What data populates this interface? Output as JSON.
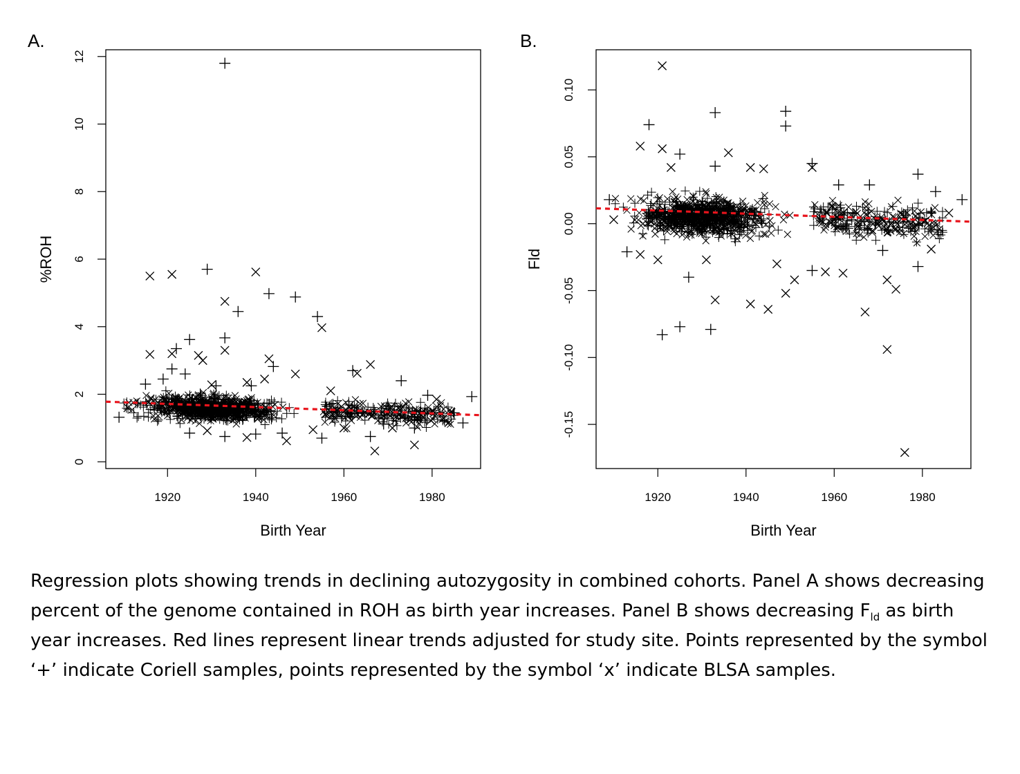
{
  "panels": {
    "a_label": "A.",
    "b_label": "B."
  },
  "colors": {
    "points": "#000000",
    "trend": "#e8141c"
  },
  "caption": {
    "part1": "Regression plots showing trends in declining autozygosity in combined cohorts.  Panel A shows decreasing percent of the genome contained in ROH as birth year increases.  Panel B shows decreasing F",
    "subscript": "ld",
    "part2": " as birth year increases.   Red lines represent linear trends adjusted for study site.  Points represented by the symbol ‘+’ indicate Coriell  samples, points represented by the symbol ‘x’ indicate BLSA samples."
  },
  "chart_data": [
    {
      "id": "A",
      "type": "scatter",
      "xlabel": "Birth Year",
      "ylabel": "%ROH",
      "xlim": [
        1906,
        1991
      ],
      "ylim": [
        -0.2,
        12.2
      ],
      "xticks": [
        1920,
        1940,
        1960,
        1980
      ],
      "yticks": [
        0,
        2,
        4,
        6,
        8,
        10,
        12
      ],
      "trend": {
        "x": [
          1906,
          1991
        ],
        "y": [
          1.78,
          1.38
        ],
        "style": "dashed"
      },
      "series": [
        {
          "marker": "+",
          "points": [
            [
              1933,
              11.8
            ],
            [
              1929,
              5.7
            ],
            [
              1943,
              4.98
            ],
            [
              1949,
              4.88
            ],
            [
              1936,
              4.45
            ],
            [
              1954,
              4.3
            ],
            [
              1925,
              3.62
            ],
            [
              1933,
              3.67
            ],
            [
              1922,
              3.35
            ],
            [
              1944,
              2.82
            ],
            [
              1921,
              2.75
            ],
            [
              1915,
              2.3
            ],
            [
              1919,
              2.45
            ],
            [
              1973,
              2.4
            ],
            [
              1989,
              1.93
            ],
            [
              1909,
              1.32
            ],
            [
              1924,
              2.6
            ],
            [
              1962,
              2.7
            ],
            [
              1979,
              1.97
            ],
            [
              1987,
              1.15
            ],
            [
              1985,
              1.45
            ],
            [
              1955,
              0.7
            ],
            [
              1966,
              0.75
            ],
            [
              1933,
              0.75
            ],
            [
              1940,
              0.82
            ],
            [
              1946,
              0.85
            ],
            [
              1925,
              0.85
            ],
            [
              1969,
              1.12
            ],
            [
              1976,
              1.0
            ],
            [
              1931,
              2.25
            ],
            [
              1939,
              2.25
            ]
          ]
        },
        {
          "marker": "x",
          "points": [
            [
              1916,
              5.5
            ],
            [
              1921,
              5.55
            ],
            [
              1940,
              5.62
            ],
            [
              1933,
              4.75
            ],
            [
              1955,
              3.97
            ],
            [
              1916,
              3.18
            ],
            [
              1921,
              3.2
            ],
            [
              1933,
              3.3
            ],
            [
              1927,
              3.15
            ],
            [
              1928,
              3.0
            ],
            [
              1943,
              3.05
            ],
            [
              1966,
              2.88
            ],
            [
              1963,
              2.62
            ],
            [
              1949,
              2.6
            ],
            [
              1967,
              0.32
            ],
            [
              1976,
              0.5
            ],
            [
              1911,
              1.6
            ],
            [
              1957,
              2.1
            ],
            [
              1981,
              1.85
            ],
            [
              1929,
              0.92
            ],
            [
              1953,
              0.95
            ],
            [
              1947,
              0.62
            ],
            [
              1938,
              0.72
            ],
            [
              1971,
              1.0
            ],
            [
              1960,
              1.0
            ],
            [
              1938,
              2.35
            ],
            [
              1942,
              2.45
            ],
            [
              1930,
              2.28
            ]
          ]
        }
      ]
    },
    {
      "id": "B",
      "type": "scatter",
      "xlabel": "Birth Year",
      "ylabel": "Fld",
      "xlim": [
        1906,
        1991
      ],
      "ylim": [
        -0.183,
        0.13
      ],
      "xticks": [
        1920,
        1940,
        1960,
        1980
      ],
      "yticks": [
        -0.15,
        -0.1,
        -0.05,
        0.0,
        0.05,
        0.1
      ],
      "ytick_labels": [
        "-0.15",
        "-0.10",
        "-0.05",
        "0.00",
        "0.05",
        "0.10"
      ],
      "trend": {
        "x": [
          1906,
          1991
        ],
        "y": [
          0.0115,
          0.0015
        ],
        "style": "dashed"
      },
      "series": [
        {
          "marker": "+",
          "points": [
            [
              1933,
              0.083
            ],
            [
              1949,
              0.084
            ],
            [
              1949,
              0.073
            ],
            [
              1918,
              0.074
            ],
            [
              1925,
              0.052
            ],
            [
              1933,
              0.043
            ],
            [
              1955,
              0.045
            ],
            [
              1979,
              0.037
            ],
            [
              1921,
              -0.083
            ],
            [
              1925,
              -0.077
            ],
            [
              1932,
              -0.079
            ],
            [
              1927,
              -0.04
            ],
            [
              1989,
              0.018
            ],
            [
              1909,
              0.018
            ],
            [
              1913,
              -0.021
            ],
            [
              1961,
              0.029
            ],
            [
              1968,
              0.029
            ],
            [
              1979,
              -0.032
            ],
            [
              1971,
              -0.02
            ],
            [
              1955,
              -0.035
            ],
            [
              1983,
              0.024
            ]
          ]
        },
        {
          "marker": "x",
          "points": [
            [
              1921,
              0.118
            ],
            [
              1921,
              0.056
            ],
            [
              1916,
              0.058
            ],
            [
              1936,
              0.053
            ],
            [
              1923,
              0.042
            ],
            [
              1941,
              0.042
            ],
            [
              1944,
              0.041
            ],
            [
              1955,
              0.042
            ],
            [
              1933,
              -0.057
            ],
            [
              1941,
              -0.06
            ],
            [
              1945,
              -0.064
            ],
            [
              1949,
              -0.052
            ],
            [
              1967,
              -0.066
            ],
            [
              1972,
              -0.042
            ],
            [
              1974,
              -0.049
            ],
            [
              1972,
              -0.094
            ],
            [
              1976,
              -0.171
            ],
            [
              1910,
              0.003
            ],
            [
              1916,
              -0.023
            ],
            [
              1951,
              -0.042
            ],
            [
              1947,
              -0.03
            ],
            [
              1958,
              -0.036
            ],
            [
              1962,
              -0.037
            ],
            [
              1986,
              0.008
            ],
            [
              1982,
              -0.019
            ],
            [
              1931,
              -0.027
            ],
            [
              1920,
              -0.027
            ]
          ]
        }
      ]
    }
  ]
}
